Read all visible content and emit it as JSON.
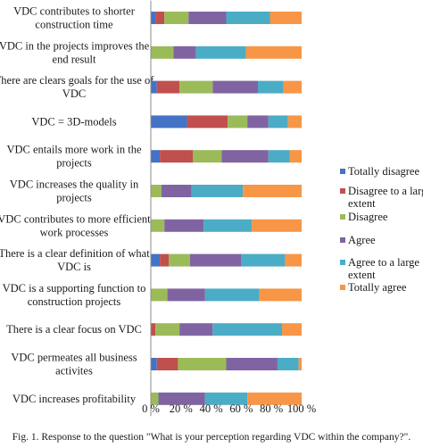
{
  "chart_data": {
    "type": "bar",
    "orientation": "horizontal",
    "stacked": true,
    "percent": true,
    "categories": [
      [
        "VDC contributes to shorter",
        "construction time"
      ],
      [
        "VDC in the projects improves the",
        "end result"
      ],
      [
        "There are clears goals for the use of",
        "VDC"
      ],
      [
        "VDC = 3D-models"
      ],
      [
        "VDC entails more work in the",
        "projects"
      ],
      [
        "VDC increases the quality in",
        "projects"
      ],
      [
        "VDC contributes to more efficient",
        "work processes"
      ],
      [
        "There is a clear definition of what",
        "VDC is"
      ],
      [
        "VDC is a supporting function to",
        "construction projects"
      ],
      [
        "There is a clear focus on VDC"
      ],
      [
        "VDC permeates all  business",
        "activites"
      ],
      [
        "VDC increases profitability"
      ]
    ],
    "series": [
      {
        "name": "Totally disagree",
        "color": "#4472c4",
        "values": [
          3,
          0,
          4,
          24,
          6,
          0,
          0,
          6,
          0,
          0,
          4,
          0
        ]
      },
      {
        "name": "Disagree to a large extent",
        "color": "#c0504d",
        "values": [
          6,
          0,
          15,
          27,
          22,
          0,
          0,
          6,
          0,
          3,
          14,
          0
        ]
      },
      {
        "name": "Disagree",
        "color": "#9bbb59",
        "values": [
          16,
          15,
          22,
          13,
          19,
          7,
          9,
          14,
          11,
          16,
          32,
          5
        ]
      },
      {
        "name": "Agree",
        "color": "#8064a2",
        "values": [
          25,
          15,
          30,
          14,
          31,
          20,
          26,
          34,
          25,
          22,
          34,
          31
        ]
      },
      {
        "name": "Agree to a large extent",
        "color": "#4bacc6",
        "values": [
          29,
          33,
          17,
          13,
          14,
          34,
          32,
          29,
          36,
          46,
          14,
          28
        ]
      },
      {
        "name": "Totally agree",
        "color": "#f79646",
        "values": [
          21,
          37,
          12,
          9,
          8,
          39,
          33,
          11,
          28,
          13,
          2,
          36
        ]
      }
    ],
    "xlim": [
      0,
      100
    ],
    "xticks": [
      "0 %",
      "20 %",
      "40 %",
      "60 %",
      "80 %",
      "100 %"
    ],
    "legend_position": "right",
    "grid": false
  },
  "caption": "Fig. 1. Response to the question \"What is your perception regarding VDC within the company?\"."
}
